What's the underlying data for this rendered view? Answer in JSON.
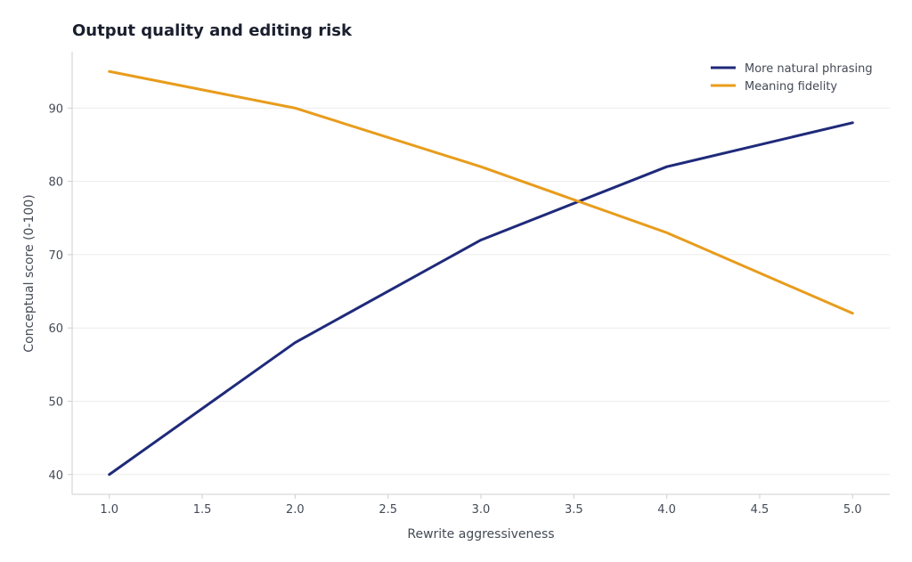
{
  "chart_data": {
    "type": "line",
    "title": "Output quality and editing risk",
    "xlabel": "Rewrite aggressiveness",
    "ylabel": "Conceptual score (0-100)",
    "x": [
      1.0,
      2.0,
      3.0,
      4.0,
      5.0
    ],
    "xlim": [
      0.8,
      5.2
    ],
    "ylim": [
      37.3,
      97.7
    ],
    "xticks": [
      "1.0",
      "1.5",
      "2.0",
      "2.5",
      "3.0",
      "3.5",
      "4.0",
      "4.5",
      "5.0"
    ],
    "yticks": [
      "40",
      "50",
      "60",
      "70",
      "80",
      "90"
    ],
    "grid": "horizontal",
    "legend_position": "top-right",
    "series": [
      {
        "name": "More natural phrasing",
        "color": "#1f2a7a",
        "values": [
          40,
          58,
          72,
          82,
          88
        ]
      },
      {
        "name": "Meaning fidelity",
        "color": "#e89c1c",
        "values": [
          95,
          90,
          82,
          73,
          62
        ]
      }
    ]
  }
}
